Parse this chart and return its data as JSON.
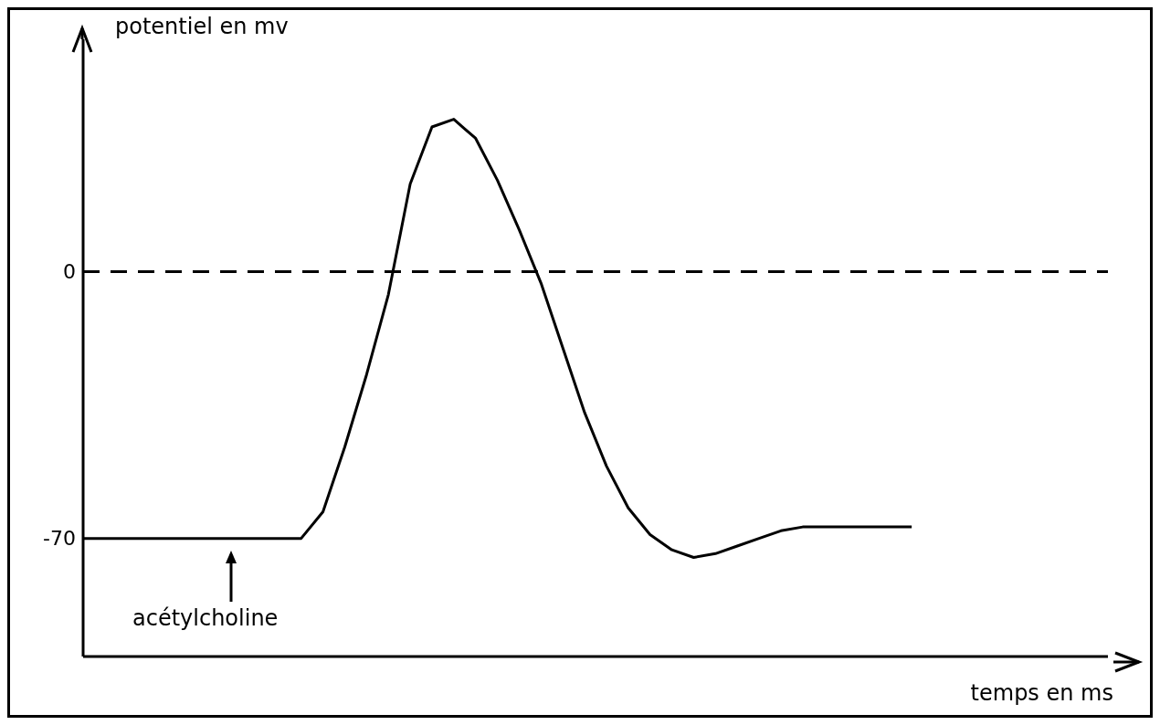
{
  "chart_data": {
    "type": "line",
    "xlabel": "temps en ms",
    "ylabel": "potentiel en mv",
    "categories": [
      null,
      null,
      null,
      null,
      null,
      null,
      null,
      null,
      null,
      null,
      null,
      null,
      null,
      null,
      null,
      null,
      null,
      null,
      null,
      null,
      null,
      null,
      null,
      null,
      null,
      null,
      null,
      null,
      null,
      null,
      null,
      null,
      null,
      null,
      null,
      null,
      null,
      null,
      null,
      null,
      null,
      null,
      null,
      null,
      null,
      null,
      null,
      null
    ],
    "values": [
      -70,
      -70,
      -70,
      -70,
      -70,
      -70,
      -70,
      -70,
      -70,
      -70,
      -70,
      -63,
      -46,
      -27,
      -6,
      23,
      38,
      40,
      35,
      24,
      11,
      -3,
      -20,
      -37,
      -51,
      -62,
      -69,
      -73,
      -75,
      -74,
      -72,
      -70,
      -68,
      -67,
      -67,
      -67,
      -67,
      -67,
      -67,
      null,
      null,
      null,
      null,
      null,
      null,
      null,
      null,
      null
    ],
    "color": "#000000",
    "ylim": [
      -101,
      61
    ],
    "yticks": [
      0,
      -70
    ],
    "tick_labels": "y",
    "ref_lines": [
      {
        "axis": "y",
        "value": 0,
        "line_style": "dashed",
        "color": "#000000"
      }
    ],
    "annotations": [
      "acétylcholine"
    ]
  }
}
